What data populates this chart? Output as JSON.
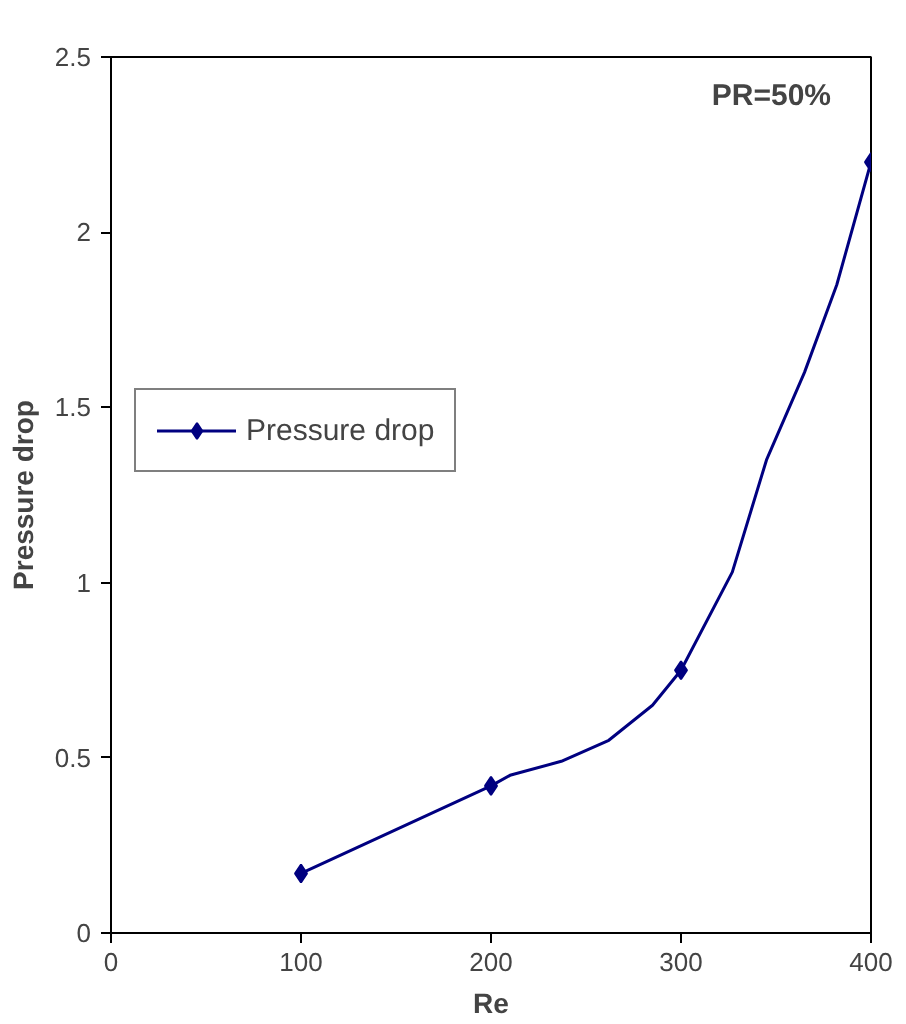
{
  "chart_data": {
    "type": "line",
    "xlabel": "Re",
    "ylabel": "Pressure drop",
    "series": [
      {
        "name": "Pressure drop",
        "color": "#000080",
        "marker": "none",
        "x": [
          100,
          200,
          210,
          237,
          262,
          285,
          300,
          327,
          345,
          365,
          382,
          400
        ],
        "values": [
          0.17,
          0.42,
          0.45,
          0.49,
          0.55,
          0.65,
          0.75,
          1.03,
          1.35,
          1.6,
          1.85,
          2.2
        ]
      },
      {
        "type": "scatter",
        "color": "#000080",
        "marker": "diamond",
        "x": [
          100,
          200,
          300,
          400
        ],
        "values": [
          0.17,
          0.42,
          0.75,
          2.2
        ]
      }
    ],
    "xlim": [
      0,
      400
    ],
    "xticks": [
      0,
      100,
      200,
      300,
      400
    ],
    "ylim": [
      0,
      2.5
    ],
    "yticks": [
      0,
      0.5,
      1,
      1.5,
      2,
      2.5
    ],
    "annotations": [
      "PR=50%"
    ],
    "grid": false,
    "legend": "left",
    "line_style": "solid"
  }
}
